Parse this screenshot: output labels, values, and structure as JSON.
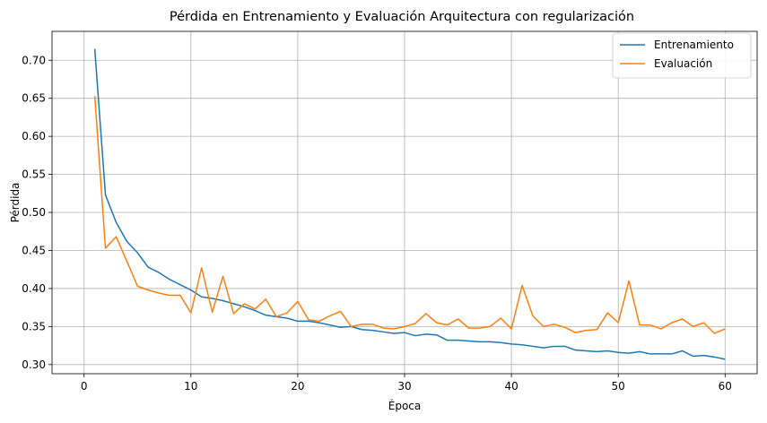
{
  "chart_data": {
    "type": "line",
    "title": "Pérdida en Entrenamiento y Evaluación Arquitectura con regularización",
    "xlabel": "Época",
    "ylabel": "Pérdida",
    "xlim": [
      -3,
      63
    ],
    "ylim": [
      0.288,
      0.738
    ],
    "xticks": [
      0,
      10,
      20,
      30,
      40,
      50,
      60
    ],
    "yticks": [
      0.3,
      0.35,
      0.4,
      0.45,
      0.5,
      0.55,
      0.6,
      0.65,
      0.7
    ],
    "grid": true,
    "legend_position": "top-right",
    "x": [
      1,
      2,
      3,
      4,
      5,
      6,
      7,
      8,
      9,
      10,
      11,
      12,
      13,
      14,
      15,
      16,
      17,
      18,
      19,
      20,
      21,
      22,
      23,
      24,
      25,
      26,
      27,
      28,
      29,
      30,
      31,
      32,
      33,
      34,
      35,
      36,
      37,
      38,
      39,
      40,
      41,
      42,
      43,
      44,
      45,
      46,
      47,
      48,
      49,
      50,
      51,
      52,
      53,
      54,
      55,
      56,
      57,
      58,
      59,
      60
    ],
    "series": [
      {
        "name": "Entrenamiento",
        "color": "#1f77b4",
        "values": [
          0.715,
          0.523,
          0.487,
          0.462,
          0.447,
          0.428,
          0.421,
          0.412,
          0.405,
          0.398,
          0.389,
          0.387,
          0.384,
          0.38,
          0.376,
          0.371,
          0.365,
          0.363,
          0.361,
          0.357,
          0.357,
          0.355,
          0.352,
          0.349,
          0.35,
          0.346,
          0.345,
          0.343,
          0.341,
          0.342,
          0.338,
          0.34,
          0.339,
          0.332,
          0.332,
          0.331,
          0.33,
          0.33,
          0.329,
          0.327,
          0.326,
          0.324,
          0.322,
          0.324,
          0.324,
          0.319,
          0.318,
          0.317,
          0.318,
          0.316,
          0.315,
          0.317,
          0.314,
          0.314,
          0.314,
          0.318,
          0.311,
          0.312,
          0.31,
          0.307
        ]
      },
      {
        "name": "Evaluación",
        "color": "#ff7f0e",
        "values": [
          0.653,
          0.453,
          0.468,
          0.436,
          0.403,
          0.398,
          0.394,
          0.391,
          0.391,
          0.368,
          0.427,
          0.369,
          0.416,
          0.367,
          0.38,
          0.373,
          0.386,
          0.363,
          0.368,
          0.383,
          0.359,
          0.357,
          0.364,
          0.37,
          0.35,
          0.353,
          0.353,
          0.348,
          0.347,
          0.35,
          0.354,
          0.367,
          0.355,
          0.352,
          0.36,
          0.348,
          0.348,
          0.35,
          0.361,
          0.347,
          0.404,
          0.364,
          0.35,
          0.353,
          0.349,
          0.342,
          0.345,
          0.346,
          0.368,
          0.355,
          0.41,
          0.352,
          0.352,
          0.347,
          0.355,
          0.36,
          0.35,
          0.355,
          0.341,
          0.347
        ]
      }
    ]
  }
}
